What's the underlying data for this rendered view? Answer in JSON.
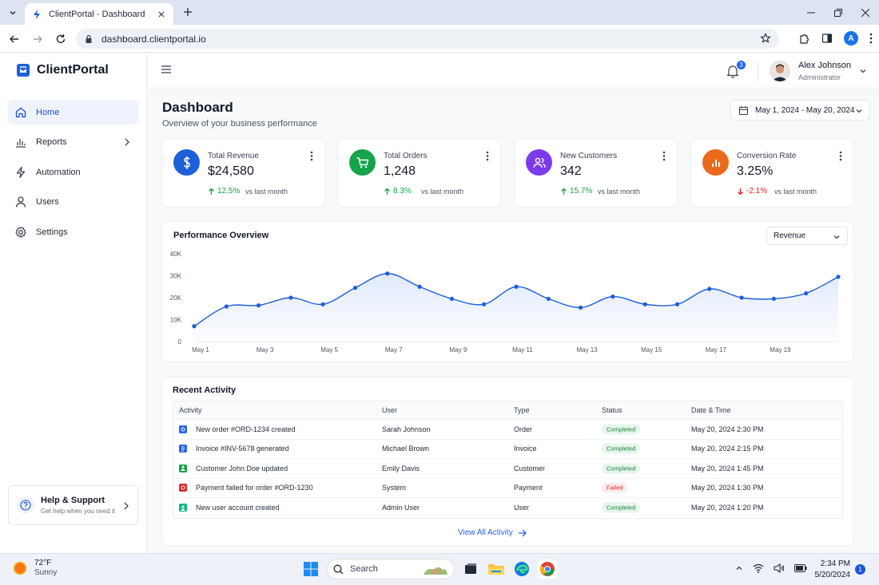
{
  "browser": {
    "tab_title": "ClientPortal - Dashboard",
    "url": "dashboard.clientportal.io",
    "profile_initial": "A"
  },
  "brand": {
    "name": "ClientPortal"
  },
  "sidebar": {
    "items": [
      {
        "label": "Home",
        "icon": "home-icon",
        "active": true
      },
      {
        "label": "Reports",
        "icon": "bar-chart-icon",
        "has_children": true
      },
      {
        "label": "Automation",
        "icon": "bolt-icon"
      },
      {
        "label": "Users",
        "icon": "user-icon"
      },
      {
        "label": "Settings",
        "icon": "gear-icon"
      }
    ],
    "help": {
      "title": "Help & Support",
      "subtitle": "Get help when you need it"
    }
  },
  "header": {
    "notification_count": "3",
    "user_name": "Alex Johnson",
    "user_role": "Administrator"
  },
  "page": {
    "title": "Dashboard",
    "subtitle": "Overview of your business performance",
    "date_range": "May 1, 2024 - May 20, 2024"
  },
  "kpis": [
    {
      "label": "Total Revenue",
      "value": "$24,580",
      "change": "12.5%",
      "direction": "up",
      "vs": "vs last month",
      "icon": "dollar-icon",
      "color": "#1d5fd8"
    },
    {
      "label": "Total Orders",
      "value": "1,248",
      "change": "8.3%",
      "direction": "up",
      "vs": "vs last month",
      "icon": "cart-icon",
      "color": "#16a34a"
    },
    {
      "label": "New Customers",
      "value": "342",
      "change": "15.7%",
      "direction": "up",
      "vs": "vs last month",
      "icon": "users-icon",
      "color": "#7c3aed"
    },
    {
      "label": "Conversion Rate",
      "value": "3.25%",
      "change": "-2.1%",
      "direction": "down",
      "vs": "vs last month",
      "icon": "chart-icon",
      "color": "#ea6a1c"
    }
  ],
  "chart": {
    "title": "Performance Overview",
    "metric_selected": "Revenue"
  },
  "chart_data": {
    "type": "area",
    "x": [
      "May 1",
      "May 2",
      "May 3",
      "May 4",
      "May 5",
      "May 6",
      "May 7",
      "May 8",
      "May 9",
      "May 10",
      "May 11",
      "May 12",
      "May 13",
      "May 14",
      "May 15",
      "May 16",
      "May 17",
      "May 18",
      "May 19",
      "May 20",
      "May 21"
    ],
    "x_tick_labels": [
      "May 1",
      "May 3",
      "May 5",
      "May 7",
      "May 9",
      "May 11",
      "May 13",
      "May 15",
      "May 17",
      "May 19"
    ],
    "y_tick_labels": [
      "0",
      "10K",
      "20K",
      "30K",
      "40K"
    ],
    "series": [
      {
        "values": [
          7000,
          16000,
          16500,
          20000,
          17000,
          24500,
          31000,
          25000,
          19500,
          17000,
          25000,
          19500,
          15500,
          20500,
          17000,
          17000,
          24000,
          20000,
          19500,
          22000,
          29500
        ]
      }
    ],
    "ylim": [
      0,
      40000
    ],
    "grid": false,
    "color": "#1d5fd8"
  },
  "activity": {
    "title": "Recent Activity",
    "columns": [
      "Activity",
      "User",
      "Type",
      "Status",
      "Date & Time"
    ],
    "rows": [
      {
        "activity": "New order #ORD-1234 created",
        "user": "Sarah Johnson",
        "type": "Order",
        "status": "Completed",
        "datetime": "May 20, 2024 2:30 PM",
        "icon_color": "#2563eb",
        "ok": true
      },
      {
        "activity": "Invoice #INV-5678 generated",
        "user": "Michael Brown",
        "type": "Invoice",
        "status": "Completed",
        "datetime": "May 20, 2024 2:15 PM",
        "icon_color": "#2563eb",
        "ok": true
      },
      {
        "activity": "Customer John Doe updated",
        "user": "Emily Davis",
        "type": "Customer",
        "status": "Completed",
        "datetime": "May 20, 2024 1:45 PM",
        "icon_color": "#16a34a",
        "ok": true
      },
      {
        "activity": "Payment failed for order #ORD-1230",
        "user": "System",
        "type": "Payment",
        "status": "Failed",
        "datetime": "May 20, 2024 1:30 PM",
        "icon_color": "#dc2626",
        "ok": false
      },
      {
        "activity": "New user account created",
        "user": "Admin User",
        "type": "User",
        "status": "Completed",
        "datetime": "May 20, 2024 1:20 PM",
        "icon_color": "#16a34a",
        "ok": true
      }
    ],
    "view_all": "View All Activity"
  },
  "taskbar": {
    "weather_temp": "72°F",
    "weather_condition": "Sunny",
    "search_placeholder": "Search",
    "time": "2:34 PM",
    "date": "5/20/2024",
    "notification_count": "1"
  }
}
